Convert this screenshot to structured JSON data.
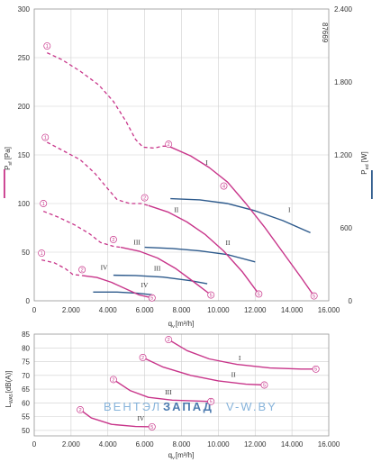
{
  "chart_data": [
    {
      "type": "line",
      "axes": {
        "x": {
          "min": 0,
          "max": 16000,
          "ticks": [
            0,
            2000,
            4000,
            6000,
            8000,
            10000,
            12000,
            14000,
            16000
          ],
          "tick_labels": [
            "0",
            "2.000",
            "4.000",
            "6.000",
            "8.000",
            "10.000",
            "12.000",
            "14.000",
            "16.000"
          ],
          "label_main": "q",
          "label_sub": "v",
          "label_unit": "[m³/h]"
        },
        "y_left": {
          "min": 0,
          "max": 300,
          "ticks": [
            0,
            50,
            100,
            150,
            200,
            250,
            300
          ],
          "tick_labels": [
            "0",
            "50",
            "100",
            "150",
            "200",
            "250",
            "300"
          ],
          "label_main": "P",
          "label_sub": "sf",
          "label_unit": "[Pa]",
          "color": "#c8358a"
        },
        "y_right": {
          "min": 0,
          "max": 2400,
          "ticks": [
            0,
            600,
            1200,
            1800,
            2400
          ],
          "tick_labels": [
            "0",
            "600",
            "1.200",
            "1.800",
            "2.400"
          ],
          "label_main": "P",
          "label_sub": "ed",
          "label_unit": "[W]",
          "color": "#2d5a8c"
        }
      },
      "code": "87669",
      "grid": true,
      "pressure_series": [
        {
          "name": "I",
          "dashed": [
            [
              700,
              255
            ],
            [
              1500,
              248
            ],
            [
              2500,
              236
            ],
            [
              3500,
              222
            ],
            [
              4300,
              205
            ],
            [
              5000,
              184
            ],
            [
              5500,
              166
            ],
            [
              5900,
              158
            ],
            [
              6500,
              157
            ],
            [
              7000,
              159
            ],
            [
              7300,
              159
            ]
          ],
          "solid": [
            [
              7300,
              159
            ],
            [
              8500,
              149
            ],
            [
              9500,
              137
            ],
            [
              10500,
              122
            ],
            [
              11500,
              100
            ],
            [
              12500,
              76
            ],
            [
              13500,
              50
            ],
            [
              14500,
              24
            ],
            [
              15200,
              5
            ]
          ],
          "markers": [
            {
              "x": 700,
              "y": 262,
              "label": "1"
            },
            {
              "x": 7300,
              "y": 161,
              "label": "2"
            },
            {
              "x": 10300,
              "y": 118,
              "label": "4"
            },
            {
              "x": 15200,
              "y": 5,
              "label": "5"
            }
          ],
          "label_pos": {
            "x": 9300,
            "y": 140
          }
        },
        {
          "name": "II",
          "dashed": [
            [
              700,
              163
            ],
            [
              1500,
              155
            ],
            [
              2500,
              145
            ],
            [
              3300,
              131
            ],
            [
              4000,
              115
            ],
            [
              4500,
              104
            ],
            [
              5200,
              100
            ],
            [
              5800,
              100
            ],
            [
              6200,
              98
            ]
          ],
          "solid": [
            [
              6200,
              98
            ],
            [
              7300,
              91
            ],
            [
              8300,
              81
            ],
            [
              9300,
              68
            ],
            [
              10300,
              51
            ],
            [
              11300,
              30
            ],
            [
              12200,
              7
            ]
          ],
          "markers": [
            {
              "x": 600,
              "y": 168,
              "label": "1"
            },
            {
              "x": 6000,
              "y": 106,
              "label": "2"
            },
            {
              "x": 12200,
              "y": 7,
              "label": "5"
            }
          ],
          "label_pos": {
            "x": 7600,
            "y": 91
          }
        },
        {
          "name": "III",
          "dashed": [
            [
              500,
              92
            ],
            [
              1300,
              86
            ],
            [
              2200,
              78
            ],
            [
              3000,
              69
            ],
            [
              3600,
              60
            ],
            [
              4300,
              56
            ],
            [
              4700,
              55
            ]
          ],
          "solid": [
            [
              4700,
              55
            ],
            [
              5700,
              51
            ],
            [
              6700,
              44
            ],
            [
              7700,
              33
            ],
            [
              8700,
              19
            ],
            [
              9600,
              6
            ]
          ],
          "markers": [
            {
              "x": 500,
              "y": 100,
              "label": "1"
            },
            {
              "x": 4300,
              "y": 63,
              "label": "2"
            },
            {
              "x": 9600,
              "y": 6,
              "label": "5"
            }
          ],
          "label_pos": {
            "x": 5400,
            "y": 58
          }
        },
        {
          "name": "IV",
          "dashed": [
            [
              400,
              42
            ],
            [
              1100,
              39
            ],
            [
              1700,
              33
            ],
            [
              2100,
              27
            ],
            [
              2600,
              26
            ]
          ],
          "solid": [
            [
              2600,
              26
            ],
            [
              3400,
              24
            ],
            [
              4200,
              19
            ],
            [
              5000,
              12
            ],
            [
              5700,
              6
            ],
            [
              6400,
              3
            ]
          ],
          "markers": [
            {
              "x": 400,
              "y": 49,
              "label": "1"
            },
            {
              "x": 2600,
              "y": 32,
              "label": "2"
            },
            {
              "x": 6400,
              "y": 3,
              "label": "5"
            }
          ],
          "label_pos": {
            "x": 3600,
            "y": 32
          }
        }
      ],
      "power_series": [
        {
          "name": "I",
          "points": [
            [
              7400,
              840
            ],
            [
              9000,
              830
            ],
            [
              10500,
              800
            ],
            [
              12000,
              740
            ],
            [
              13500,
              660
            ],
            [
              15000,
              560
            ]
          ],
          "label_pos": {
            "x": 13800,
            "y": 730
          }
        },
        {
          "name": "II",
          "points": [
            [
              6000,
              440
            ],
            [
              7500,
              430
            ],
            [
              9000,
              410
            ],
            [
              10500,
              380
            ],
            [
              12000,
              320
            ]
          ],
          "label_pos": {
            "x": 10400,
            "y": 460
          }
        },
        {
          "name": "III",
          "points": [
            [
              4300,
              210
            ],
            [
              5500,
              208
            ],
            [
              7000,
              195
            ],
            [
              8500,
              165
            ],
            [
              9400,
              140
            ]
          ],
          "label_pos": {
            "x": 6500,
            "y": 250
          }
        },
        {
          "name": "IV",
          "points": [
            [
              3200,
              72
            ],
            [
              4500,
              72
            ],
            [
              5600,
              62
            ],
            [
              6400,
              50
            ]
          ],
          "label_pos": {
            "x": 5800,
            "y": 112
          }
        }
      ]
    },
    {
      "type": "line",
      "axes": {
        "x": {
          "min": 0,
          "max": 16000,
          "ticks": [
            0,
            2000,
            4000,
            6000,
            8000,
            10000,
            12000,
            14000,
            16000
          ],
          "tick_labels": [
            "0",
            "2.000",
            "4.000",
            "6.000",
            "8.000",
            "10.000",
            "12.000",
            "14.000",
            "16.000"
          ],
          "label_main": "q",
          "label_sub": "v",
          "label_unit": "[m³/h]"
        },
        "y": {
          "min": 48,
          "max": 85,
          "ticks": [
            50,
            55,
            60,
            65,
            70,
            75,
            80,
            85
          ],
          "tick_labels": [
            "50",
            "55",
            "60",
            "65",
            "70",
            "75",
            "80",
            "85"
          ],
          "label_main": "L",
          "label_sub": "WA5",
          "label_unit": "[dB(A)]"
        }
      },
      "grid": true,
      "watermark": {
        "text_a": "ВЕНТЭЛ",
        "text_b": "ЗАПАД",
        "text_c": "V-W.BY"
      },
      "series": [
        {
          "name": "I",
          "points": [
            [
              7300,
              83
            ],
            [
              8300,
              79
            ],
            [
              9500,
              76
            ],
            [
              11000,
              74
            ],
            [
              12800,
              72.7
            ],
            [
              14500,
              72.3
            ],
            [
              15300,
              72.3
            ]
          ],
          "markers": [
            {
              "x": 7300,
              "y": 83,
              "label": "2"
            },
            {
              "x": 15300,
              "y": 72.3,
              "label": "5"
            }
          ],
          "label_pos": {
            "x": 11100,
            "y": 75.5
          }
        },
        {
          "name": "II",
          "points": [
            [
              5900,
              76.5
            ],
            [
              7000,
              73
            ],
            [
              8500,
              70
            ],
            [
              10000,
              68
            ],
            [
              11500,
              66.8
            ],
            [
              12500,
              66.5
            ]
          ],
          "markers": [
            {
              "x": 5900,
              "y": 76.5,
              "label": "2"
            },
            {
              "x": 12500,
              "y": 66.5,
              "label": "5"
            }
          ],
          "label_pos": {
            "x": 10700,
            "y": 69.5
          }
        },
        {
          "name": "III",
          "points": [
            [
              4300,
              68.5
            ],
            [
              5200,
              64.5
            ],
            [
              6200,
              62
            ],
            [
              7500,
              61
            ],
            [
              9600,
              60.5
            ]
          ],
          "markers": [
            {
              "x": 4300,
              "y": 68.5,
              "label": "2"
            },
            {
              "x": 9600,
              "y": 60.5,
              "label": "5"
            }
          ],
          "label_pos": {
            "x": 7100,
            "y": 63
          }
        },
        {
          "name": "IV",
          "points": [
            [
              2500,
              57.5
            ],
            [
              3100,
              54.5
            ],
            [
              4200,
              52.2
            ],
            [
              5500,
              51.4
            ],
            [
              6400,
              51.3
            ]
          ],
          "markers": [
            {
              "x": 2500,
              "y": 57.5,
              "label": "2"
            },
            {
              "x": 6400,
              "y": 51.3,
              "label": "5"
            }
          ],
          "label_pos": {
            "x": 5600,
            "y": 53.5
          }
        }
      ]
    }
  ]
}
